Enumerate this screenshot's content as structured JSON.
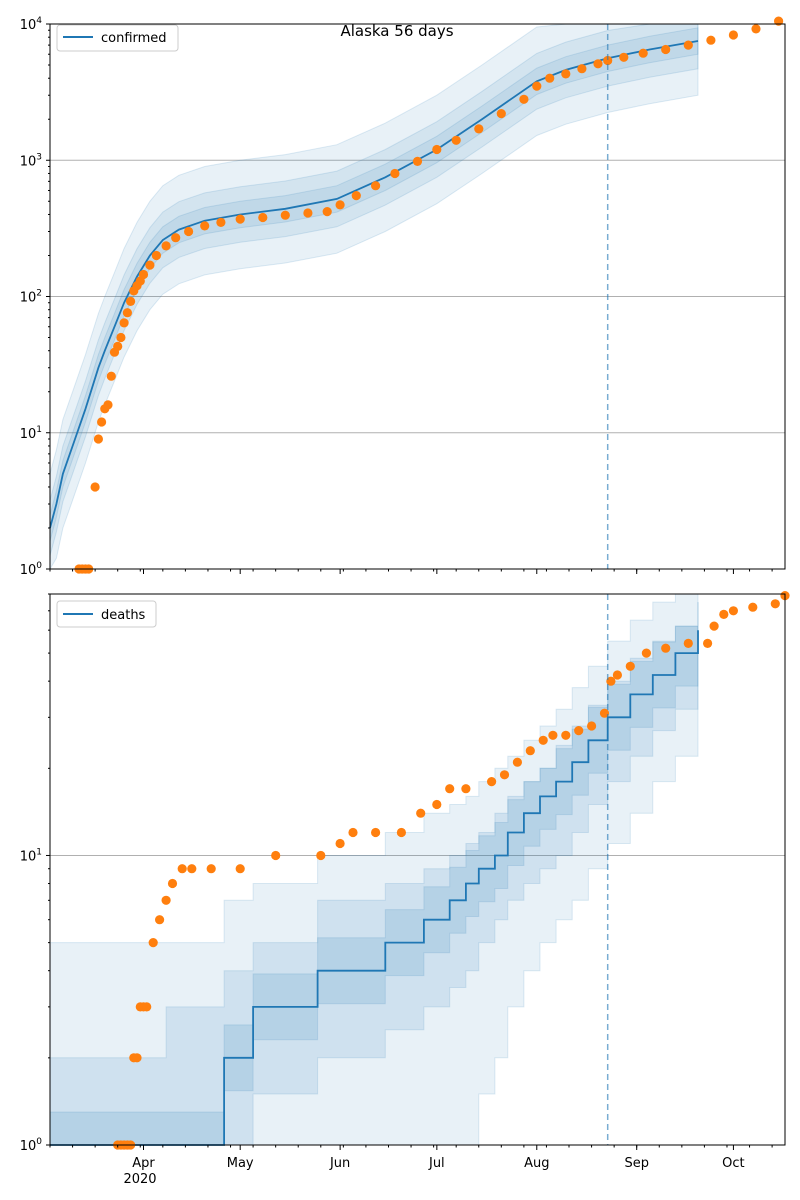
{
  "title": "Alaska 56 days",
  "colors": {
    "model": "#1f77b4",
    "observed": "#ff7f0e",
    "band": "#1f77b4",
    "grid": "#b0b0b0",
    "forecast_line": "#1f77b4"
  },
  "x_axis": {
    "tick_labels": [
      "Apr",
      "May",
      "Jun",
      "Jul",
      "Aug",
      "Sep",
      "Oct"
    ],
    "tick_dates": [
      "2020-04-01",
      "2020-05-01",
      "2020-06-01",
      "2020-07-01",
      "2020-08-01",
      "2020-09-01",
      "2020-10-01"
    ],
    "year_label": "2020",
    "range": [
      "2020-03-03",
      "2020-10-17"
    ]
  },
  "chart_data": [
    {
      "type": "line",
      "panel": "top",
      "scale": "log",
      "ylim": [
        1,
        10000
      ],
      "ytick_labels": [
        "10^0",
        "10^1",
        "10^2",
        "10^3",
        "10^4"
      ],
      "grid": "horizontal",
      "legend": {
        "label": "confirmed",
        "placement": "top-left"
      },
      "forecast_start": "2020-08-23",
      "model_end": "2020-09-20",
      "model": {
        "dates": [
          "2020-03-03",
          "2020-03-05",
          "2020-03-07",
          "2020-03-10",
          "2020-03-14",
          "2020-03-18",
          "2020-03-20",
          "2020-03-23",
          "2020-03-26",
          "2020-03-30",
          "2020-04-03",
          "2020-04-07",
          "2020-04-12",
          "2020-04-20",
          "2020-05-01",
          "2020-05-15",
          "2020-05-31",
          "2020-06-15",
          "2020-07-01",
          "2020-07-15",
          "2020-08-01",
          "2020-08-10",
          "2020-08-23",
          "2020-09-05",
          "2020-09-20"
        ],
        "values": [
          2,
          3,
          5,
          8,
          15,
          30,
          40,
          60,
          90,
          140,
          200,
          260,
          310,
          360,
          400,
          440,
          520,
          750,
          1200,
          2000,
          3800,
          4600,
          5600,
          6500,
          7500
        ]
      },
      "band_factors": [
        1.25,
        1.6,
        2.5
      ],
      "observed": {
        "dates": [
          "2020-03-12",
          "2020-03-13",
          "2020-03-14",
          "2020-03-15",
          "2020-03-17",
          "2020-03-18",
          "2020-03-19",
          "2020-03-20",
          "2020-03-21",
          "2020-03-22",
          "2020-03-23",
          "2020-03-24",
          "2020-03-25",
          "2020-03-26",
          "2020-03-27",
          "2020-03-28",
          "2020-03-29",
          "2020-03-30",
          "2020-03-31",
          "2020-04-01",
          "2020-04-03",
          "2020-04-05",
          "2020-04-08",
          "2020-04-11",
          "2020-04-15",
          "2020-04-20",
          "2020-04-25",
          "2020-05-01",
          "2020-05-08",
          "2020-05-15",
          "2020-05-22",
          "2020-05-28",
          "2020-06-01",
          "2020-06-06",
          "2020-06-12",
          "2020-06-18",
          "2020-06-25",
          "2020-07-01",
          "2020-07-07",
          "2020-07-14",
          "2020-07-21",
          "2020-07-28",
          "2020-08-01",
          "2020-08-05",
          "2020-08-10",
          "2020-08-15",
          "2020-08-20",
          "2020-08-23",
          "2020-08-28",
          "2020-09-03",
          "2020-09-10",
          "2020-09-17",
          "2020-09-24",
          "2020-10-01",
          "2020-10-08",
          "2020-10-15"
        ],
        "values": [
          1,
          1,
          1,
          1,
          4,
          9,
          12,
          15,
          16,
          26,
          39,
          43,
          50,
          64,
          76,
          92,
          110,
          120,
          130,
          145,
          170,
          200,
          235,
          270,
          300,
          330,
          350,
          370,
          380,
          395,
          410,
          420,
          470,
          550,
          650,
          800,
          980,
          1200,
          1400,
          1700,
          2200,
          2800,
          3500,
          4000,
          4300,
          4700,
          5100,
          5400,
          5700,
          6100,
          6500,
          7000,
          7600,
          8300,
          9200,
          10500
        ]
      }
    },
    {
      "type": "line",
      "panel": "bottom",
      "scale": "log",
      "ylim": [
        1,
        80
      ],
      "ytick_labels": [
        "10^0",
        "10^1"
      ],
      "grid": "horizontal",
      "legend": {
        "label": "deaths",
        "placement": "top-left"
      },
      "forecast_start": "2020-08-23",
      "model_end": "2020-09-20",
      "model": {
        "dates": [
          "2020-03-03",
          "2020-04-08",
          "2020-04-26",
          "2020-05-05",
          "2020-05-25",
          "2020-06-15",
          "2020-06-27",
          "2020-07-05",
          "2020-07-10",
          "2020-07-14",
          "2020-07-19",
          "2020-07-23",
          "2020-07-28",
          "2020-08-02",
          "2020-08-07",
          "2020-08-12",
          "2020-08-17",
          "2020-08-23",
          "2020-08-30",
          "2020-09-06",
          "2020-09-13",
          "2020-09-20"
        ],
        "values": [
          1,
          1,
          2,
          3,
          4,
          5,
          6,
          7,
          8,
          9,
          10,
          12,
          14,
          16,
          18,
          21,
          25,
          30,
          36,
          42,
          50,
          60
        ]
      },
      "bands": {
        "dates": [
          "2020-03-03",
          "2020-04-08",
          "2020-04-26",
          "2020-05-05",
          "2020-05-25",
          "2020-06-15",
          "2020-06-27",
          "2020-07-05",
          "2020-07-10",
          "2020-07-14",
          "2020-07-19",
          "2020-07-23",
          "2020-07-28",
          "2020-08-02",
          "2020-08-07",
          "2020-08-12",
          "2020-08-17",
          "2020-08-23",
          "2020-08-30",
          "2020-09-06",
          "2020-09-13",
          "2020-09-20"
        ],
        "outer_low": [
          1,
          1,
          1,
          1,
          1,
          1,
          1,
          1,
          1,
          1.5,
          2,
          3,
          4,
          5,
          6,
          7,
          9,
          11,
          14,
          18,
          22,
          27
        ],
        "outer_high": [
          5,
          5,
          7,
          8,
          10,
          12,
          14,
          15,
          16,
          18,
          20,
          22,
          25,
          28,
          32,
          38,
          45,
          55,
          65,
          75,
          85,
          95
        ],
        "mid_low": [
          1,
          1,
          1,
          1.5,
          2,
          2.5,
          3,
          3.5,
          4,
          5,
          6,
          7,
          8,
          9,
          10,
          12,
          15,
          18,
          22,
          27,
          32,
          40
        ],
        "mid_high": [
          2,
          3,
          4,
          5,
          7,
          8,
          9,
          10,
          11,
          12,
          14,
          16,
          18,
          20,
          24,
          28,
          33,
          40,
          48,
          55,
          62,
          75
        ]
      },
      "observed": {
        "dates": [
          "2020-03-24",
          "2020-03-25",
          "2020-03-26",
          "2020-03-27",
          "2020-03-28",
          "2020-03-29",
          "2020-03-30",
          "2020-03-31",
          "2020-04-01",
          "2020-04-02",
          "2020-04-04",
          "2020-04-06",
          "2020-04-08",
          "2020-04-10",
          "2020-04-13",
          "2020-04-16",
          "2020-04-22",
          "2020-05-01",
          "2020-05-12",
          "2020-05-26",
          "2020-06-01",
          "2020-06-05",
          "2020-06-12",
          "2020-06-20",
          "2020-06-26",
          "2020-07-01",
          "2020-07-05",
          "2020-07-10",
          "2020-07-18",
          "2020-07-22",
          "2020-07-26",
          "2020-07-30",
          "2020-08-03",
          "2020-08-06",
          "2020-08-10",
          "2020-08-14",
          "2020-08-18",
          "2020-08-22",
          "2020-08-24",
          "2020-08-26",
          "2020-08-30",
          "2020-09-04",
          "2020-09-10",
          "2020-09-17",
          "2020-09-23",
          "2020-09-25",
          "2020-09-28",
          "2020-10-01",
          "2020-10-07",
          "2020-10-14",
          "2020-10-17"
        ],
        "values": [
          1,
          1,
          1,
          1,
          1,
          2,
          2,
          3,
          3,
          3,
          5,
          6,
          7,
          8,
          9,
          9,
          9,
          9,
          10,
          10,
          11,
          12,
          12,
          12,
          14,
          15,
          17,
          17,
          18,
          19,
          21,
          23,
          25,
          26,
          26,
          27,
          28,
          31,
          40,
          42,
          45,
          50,
          52,
          54,
          54,
          62,
          68,
          70,
          72,
          74,
          79
        ]
      }
    }
  ]
}
